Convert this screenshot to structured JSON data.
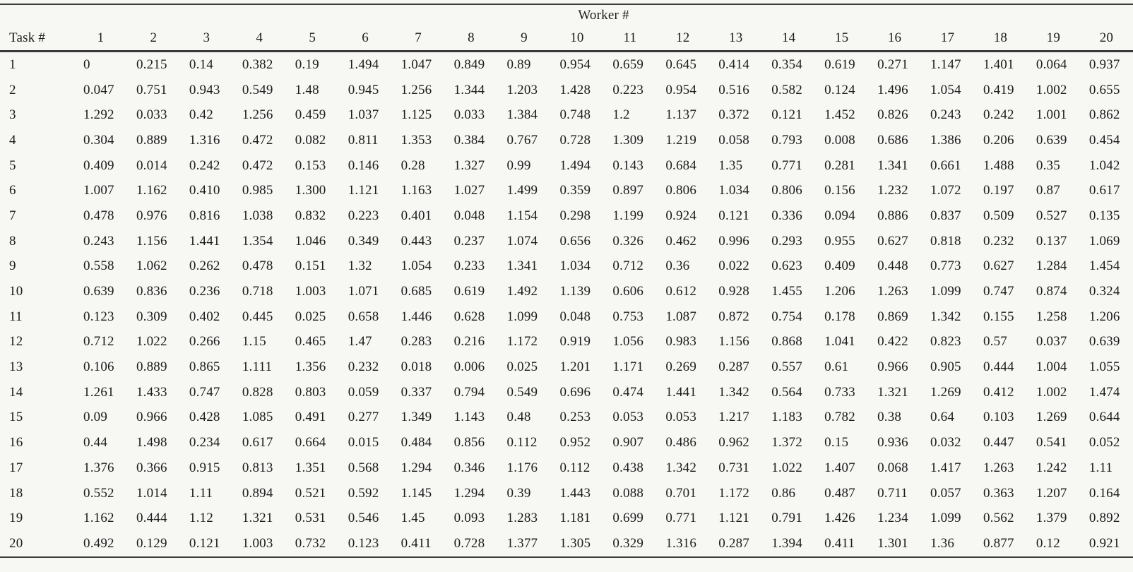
{
  "chart_data": {
    "type": "table",
    "group_header": "Worker #",
    "row_header_label": "Task #",
    "columns": [
      "1",
      "2",
      "3",
      "4",
      "5",
      "6",
      "7",
      "8",
      "9",
      "10",
      "11",
      "12",
      "13",
      "14",
      "15",
      "16",
      "17",
      "18",
      "19",
      "20"
    ],
    "row_labels": [
      "1",
      "2",
      "3",
      "4",
      "5",
      "6",
      "7",
      "8",
      "9",
      "10",
      "11",
      "12",
      "13",
      "14",
      "15",
      "16",
      "17",
      "18",
      "19",
      "20"
    ],
    "rows": [
      [
        "0",
        "0.215",
        "0.14",
        "0.382",
        "0.19",
        "1.494",
        "1.047",
        "0.849",
        "0.89",
        "0.954",
        "0.659",
        "0.645",
        "0.414",
        "0.354",
        "0.619",
        "0.271",
        "1.147",
        "1.401",
        "0.064",
        "0.937"
      ],
      [
        "0.047",
        "0.751",
        "0.943",
        "0.549",
        "1.48",
        "0.945",
        "1.256",
        "1.344",
        "1.203",
        "1.428",
        "0.223",
        "0.954",
        "0.516",
        "0.582",
        "0.124",
        "1.496",
        "1.054",
        "0.419",
        "1.002",
        "0.655"
      ],
      [
        "1.292",
        "0.033",
        "0.42",
        "1.256",
        "0.459",
        "1.037",
        "1.125",
        "0.033",
        "1.384",
        "0.748",
        "1.2",
        "1.137",
        "0.372",
        "0.121",
        "1.452",
        "0.826",
        "0.243",
        "0.242",
        "1.001",
        "0.862"
      ],
      [
        "0.304",
        "0.889",
        "1.316",
        "0.472",
        "0.082",
        "0.811",
        "1.353",
        "0.384",
        "0.767",
        "0.728",
        "1.309",
        "1.219",
        "0.058",
        "0.793",
        "0.008",
        "0.686",
        "1.386",
        "0.206",
        "0.639",
        "0.454"
      ],
      [
        "0.409",
        "0.014",
        "0.242",
        "0.472",
        "0.153",
        "0.146",
        "0.28",
        "1.327",
        "0.99",
        "1.494",
        "0.143",
        "0.684",
        "1.35",
        "0.771",
        "0.281",
        "1.341",
        "0.661",
        "1.488",
        "0.35",
        "1.042"
      ],
      [
        "1.007",
        "1.162",
        "0.410",
        "0.985",
        "1.300",
        "1.121",
        "1.163",
        "1.027",
        "1.499",
        "0.359",
        "0.897",
        "0.806",
        "1.034",
        "0.806",
        "0.156",
        "1.232",
        "1.072",
        "0.197",
        "0.87",
        "0.617"
      ],
      [
        "0.478",
        "0.976",
        "0.816",
        "1.038",
        "0.832",
        "0.223",
        "0.401",
        "0.048",
        "1.154",
        "0.298",
        "1.199",
        "0.924",
        "0.121",
        "0.336",
        "0.094",
        "0.886",
        "0.837",
        "0.509",
        "0.527",
        "0.135"
      ],
      [
        "0.243",
        "1.156",
        "1.441",
        "1.354",
        "1.046",
        "0.349",
        "0.443",
        "0.237",
        "1.074",
        "0.656",
        "0.326",
        "0.462",
        "0.996",
        "0.293",
        "0.955",
        "0.627",
        "0.818",
        "0.232",
        "0.137",
        "1.069"
      ],
      [
        "0.558",
        "1.062",
        "0.262",
        "0.478",
        "0.151",
        "1.32",
        "1.054",
        "0.233",
        "1.341",
        "1.034",
        "0.712",
        "0.36",
        "0.022",
        "0.623",
        "0.409",
        "0.448",
        "0.773",
        "0.627",
        "1.284",
        "1.454"
      ],
      [
        "0.639",
        "0.836",
        "0.236",
        "0.718",
        "1.003",
        "1.071",
        "0.685",
        "0.619",
        "1.492",
        "1.139",
        "0.606",
        "0.612",
        "0.928",
        "1.455",
        "1.206",
        "1.263",
        "1.099",
        "0.747",
        "0.874",
        "0.324"
      ],
      [
        "0.123",
        "0.309",
        "0.402",
        "0.445",
        "0.025",
        "0.658",
        "1.446",
        "0.628",
        "1.099",
        "0.048",
        "0.753",
        "1.087",
        "0.872",
        "0.754",
        "0.178",
        "0.869",
        "1.342",
        "0.155",
        "1.258",
        "1.206"
      ],
      [
        "0.712",
        "1.022",
        "0.266",
        "1.15",
        "0.465",
        "1.47",
        "0.283",
        "0.216",
        "1.172",
        "0.919",
        "1.056",
        "0.983",
        "1.156",
        "0.868",
        "1.041",
        "0.422",
        "0.823",
        "0.57",
        "0.037",
        "0.639"
      ],
      [
        "0.106",
        "0.889",
        "0.865",
        "1.111",
        "1.356",
        "0.232",
        "0.018",
        "0.006",
        "0.025",
        "1.201",
        "1.171",
        "0.269",
        "0.287",
        "0.557",
        "0.61",
        "0.966",
        "0.905",
        "0.444",
        "1.004",
        "1.055"
      ],
      [
        "1.261",
        "1.433",
        "0.747",
        "0.828",
        "0.803",
        "0.059",
        "0.337",
        "0.794",
        "0.549",
        "0.696",
        "0.474",
        "1.441",
        "1.342",
        "0.564",
        "0.733",
        "1.321",
        "1.269",
        "0.412",
        "1.002",
        "1.474"
      ],
      [
        "0.09",
        "0.966",
        "0.428",
        "1.085",
        "0.491",
        "0.277",
        "1.349",
        "1.143",
        "0.48",
        "0.253",
        "0.053",
        "0.053",
        "1.217",
        "1.183",
        "0.782",
        "0.38",
        "0.64",
        "0.103",
        "1.269",
        "0.644"
      ],
      [
        "0.44",
        "1.498",
        "0.234",
        "0.617",
        "0.664",
        "0.015",
        "0.484",
        "0.856",
        "0.112",
        "0.952",
        "0.907",
        "0.486",
        "0.962",
        "1.372",
        "0.15",
        "0.936",
        "0.032",
        "0.447",
        "0.541",
        "0.052"
      ],
      [
        "1.376",
        "0.366",
        "0.915",
        "0.813",
        "1.351",
        "0.568",
        "1.294",
        "0.346",
        "1.176",
        "0.112",
        "0.438",
        "1.342",
        "0.731",
        "1.022",
        "1.407",
        "0.068",
        "1.417",
        "1.263",
        "1.242",
        "1.11"
      ],
      [
        "0.552",
        "1.014",
        "1.11",
        "0.894",
        "0.521",
        "0.592",
        "1.145",
        "1.294",
        "0.39",
        "1.443",
        "0.088",
        "0.701",
        "1.172",
        "0.86",
        "0.487",
        "0.711",
        "0.057",
        "0.363",
        "1.207",
        "0.164"
      ],
      [
        "1.162",
        "0.444",
        "1.12",
        "1.321",
        "0.531",
        "0.546",
        "1.45",
        "0.093",
        "1.283",
        "1.181",
        "0.699",
        "0.771",
        "1.121",
        "0.791",
        "1.426",
        "1.234",
        "1.099",
        "0.562",
        "1.379",
        "0.892"
      ],
      [
        "0.492",
        "0.129",
        "0.121",
        "1.003",
        "0.732",
        "0.123",
        "0.411",
        "0.728",
        "1.377",
        "1.305",
        "0.329",
        "1.316",
        "0.287",
        "1.394",
        "0.411",
        "1.301",
        "1.36",
        "0.877",
        "0.12",
        "0.921"
      ]
    ]
  }
}
